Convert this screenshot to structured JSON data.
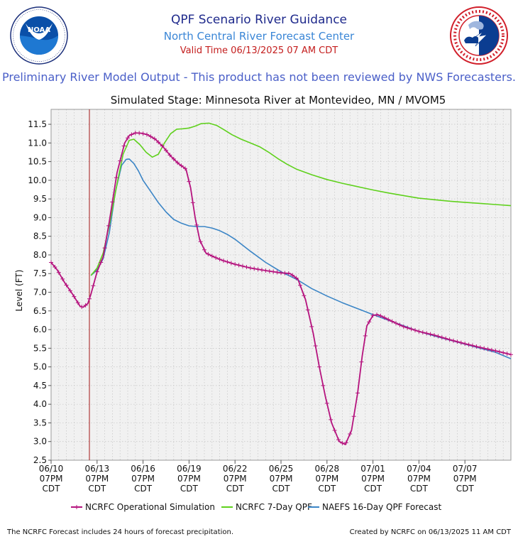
{
  "header": {
    "title": "QPF Scenario River Guidance",
    "subtitle": "North Central River Forecast Center",
    "valid_time": "Valid Time 06/13/2025 07 AM CDT",
    "preliminary_note": "Preliminary River Model Output - This product has not been reviewed by NWS Forecasters."
  },
  "logos": {
    "noaa": {
      "center": "NOAA",
      "ring_text": "NATIONAL OCEANIC AND ATMOSPHERIC ADMINISTRATION · U.S. DEPARTMENT OF COMMERCE"
    },
    "nws": {
      "ring_text": "NATIONAL WEATHER SERVICE"
    }
  },
  "footer": {
    "left": "The NCRFC Forecast includes 24 hours of forecast precipitation.",
    "right": "Created by NCRFC on 06/13/2025 11 AM CDT"
  },
  "chart_data": {
    "type": "line",
    "title": "Simulated Stage: Minnesota River at Montevideo, MN / MVOM5",
    "ylabel": "Level (FT)",
    "xlabel": "",
    "ylim": [
      2.5,
      11.9
    ],
    "xlim": [
      "06/10 07PM",
      "07/10 07PM"
    ],
    "x_unit": "days since 06/10 07PM CDT",
    "xdays": [
      0,
      30
    ],
    "yticks": [
      "2.5",
      "3.0",
      "3.5",
      "4.0",
      "4.5",
      "5.0",
      "5.5",
      "6.0",
      "6.5",
      "7.0",
      "7.5",
      "8.0",
      "8.5",
      "9.0",
      "9.5",
      "10.0",
      "10.5",
      "11.0",
      "11.5"
    ],
    "xticks": [
      {
        "day": 0,
        "lines": [
          "06/10",
          "07PM",
          "CDT"
        ]
      },
      {
        "day": 3,
        "lines": [
          "06/13",
          "07PM",
          "CDT"
        ]
      },
      {
        "day": 6,
        "lines": [
          "06/16",
          "07PM",
          "CDT"
        ]
      },
      {
        "day": 9,
        "lines": [
          "06/19",
          "07PM",
          "CDT"
        ]
      },
      {
        "day": 12,
        "lines": [
          "06/22",
          "07PM",
          "CDT"
        ]
      },
      {
        "day": 15,
        "lines": [
          "06/25",
          "07PM",
          "CDT"
        ]
      },
      {
        "day": 18,
        "lines": [
          "06/28",
          "07PM",
          "CDT"
        ]
      },
      {
        "day": 21,
        "lines": [
          "07/01",
          "07PM",
          "CDT"
        ]
      },
      {
        "day": 24,
        "lines": [
          "07/04",
          "07PM",
          "CDT"
        ]
      },
      {
        "day": 27,
        "lines": [
          "07/07",
          "07PM",
          "CDT"
        ]
      }
    ],
    "valid_time_day": 2.5,
    "grid": true,
    "legend_position": "bottom",
    "colors": {
      "operational": "#b5137e",
      "qpf7": "#5fd11c",
      "naefs": "#3b85c6",
      "valid_line": "#a31515"
    },
    "series": [
      {
        "name": "NCRFC Operational Simulation",
        "color": "#b5137e",
        "marker": "plus",
        "x": [
          0,
          0.4,
          0.9,
          1.4,
          1.9,
          2.1,
          2.4,
          2.6,
          3.0,
          3.4,
          3.8,
          4.3,
          4.8,
          5.1,
          5.5,
          5.9,
          6.3,
          6.8,
          7.3,
          7.8,
          8.3,
          8.8,
          9.1,
          9.4,
          9.7,
          10.1,
          10.6,
          11.2,
          12,
          13,
          14,
          15,
          15.6,
          16.1,
          16.6,
          17.1,
          17.5,
          17.9,
          18.3,
          18.8,
          19.2,
          19.6,
          20.0,
          20.3,
          20.6,
          21.0,
          21.3,
          21.6,
          22.0,
          22.5,
          23,
          24,
          25,
          26,
          27,
          28,
          29,
          30
        ],
        "y": [
          7.8,
          7.6,
          7.25,
          6.95,
          6.62,
          6.6,
          6.7,
          6.95,
          7.55,
          7.95,
          8.9,
          10.2,
          11.0,
          11.2,
          11.27,
          11.26,
          11.22,
          11.1,
          10.9,
          10.65,
          10.45,
          10.3,
          9.8,
          9.0,
          8.4,
          8.05,
          7.95,
          7.85,
          7.75,
          7.65,
          7.58,
          7.52,
          7.5,
          7.35,
          6.8,
          5.9,
          5.0,
          4.2,
          3.5,
          3.0,
          2.92,
          3.3,
          4.3,
          5.3,
          6.1,
          6.38,
          6.4,
          6.35,
          6.27,
          6.17,
          6.08,
          5.95,
          5.85,
          5.73,
          5.62,
          5.52,
          5.43,
          5.33
        ]
      },
      {
        "name": "NCRFC 7-Day QPF",
        "color": "#5fd11c",
        "x": [
          2.6,
          3.0,
          3.4,
          3.8,
          4.3,
          4.7,
          5.1,
          5.4,
          5.8,
          6.2,
          6.6,
          7.0,
          7.4,
          7.8,
          8.2,
          8.6,
          9.0,
          9.4,
          9.8,
          10.3,
          10.8,
          11.3,
          11.8,
          12.4,
          13.0,
          13.6,
          14.2,
          14.8,
          15.4,
          16,
          17,
          18,
          19,
          20,
          21,
          22,
          23,
          24,
          25,
          26,
          27,
          28,
          29,
          30
        ],
        "y": [
          7.45,
          7.65,
          8.05,
          8.8,
          9.9,
          10.7,
          11.07,
          11.1,
          10.95,
          10.75,
          10.62,
          10.7,
          11.0,
          11.25,
          11.37,
          11.38,
          11.4,
          11.45,
          11.52,
          11.53,
          11.47,
          11.35,
          11.22,
          11.1,
          11.0,
          10.9,
          10.75,
          10.58,
          10.43,
          10.3,
          10.15,
          10.02,
          9.92,
          9.83,
          9.74,
          9.66,
          9.59,
          9.52,
          9.48,
          9.44,
          9.41,
          9.38,
          9.35,
          9.32
        ]
      },
      {
        "name": "NAEFS 16-Day QPF Forecast",
        "color": "#3b85c6",
        "x": [
          2.6,
          3.0,
          3.4,
          3.8,
          4.2,
          4.6,
          4.9,
          5.1,
          5.4,
          5.7,
          6.0,
          6.5,
          7.0,
          7.5,
          8.0,
          8.5,
          9.0,
          9.5,
          10.0,
          10.5,
          11.0,
          11.5,
          12.0,
          13,
          14,
          15,
          16,
          17,
          18,
          19,
          20,
          21,
          22,
          23,
          24,
          25,
          26,
          27,
          28,
          29,
          30
        ],
        "y": [
          7.45,
          7.6,
          7.9,
          8.6,
          9.7,
          10.4,
          10.56,
          10.57,
          10.45,
          10.25,
          10.0,
          9.7,
          9.4,
          9.15,
          8.95,
          8.85,
          8.78,
          8.76,
          8.76,
          8.72,
          8.65,
          8.55,
          8.42,
          8.1,
          7.8,
          7.55,
          7.35,
          7.1,
          6.9,
          6.72,
          6.56,
          6.4,
          6.25,
          6.1,
          5.95,
          5.83,
          5.72,
          5.61,
          5.5,
          5.39,
          5.22
        ]
      }
    ]
  }
}
